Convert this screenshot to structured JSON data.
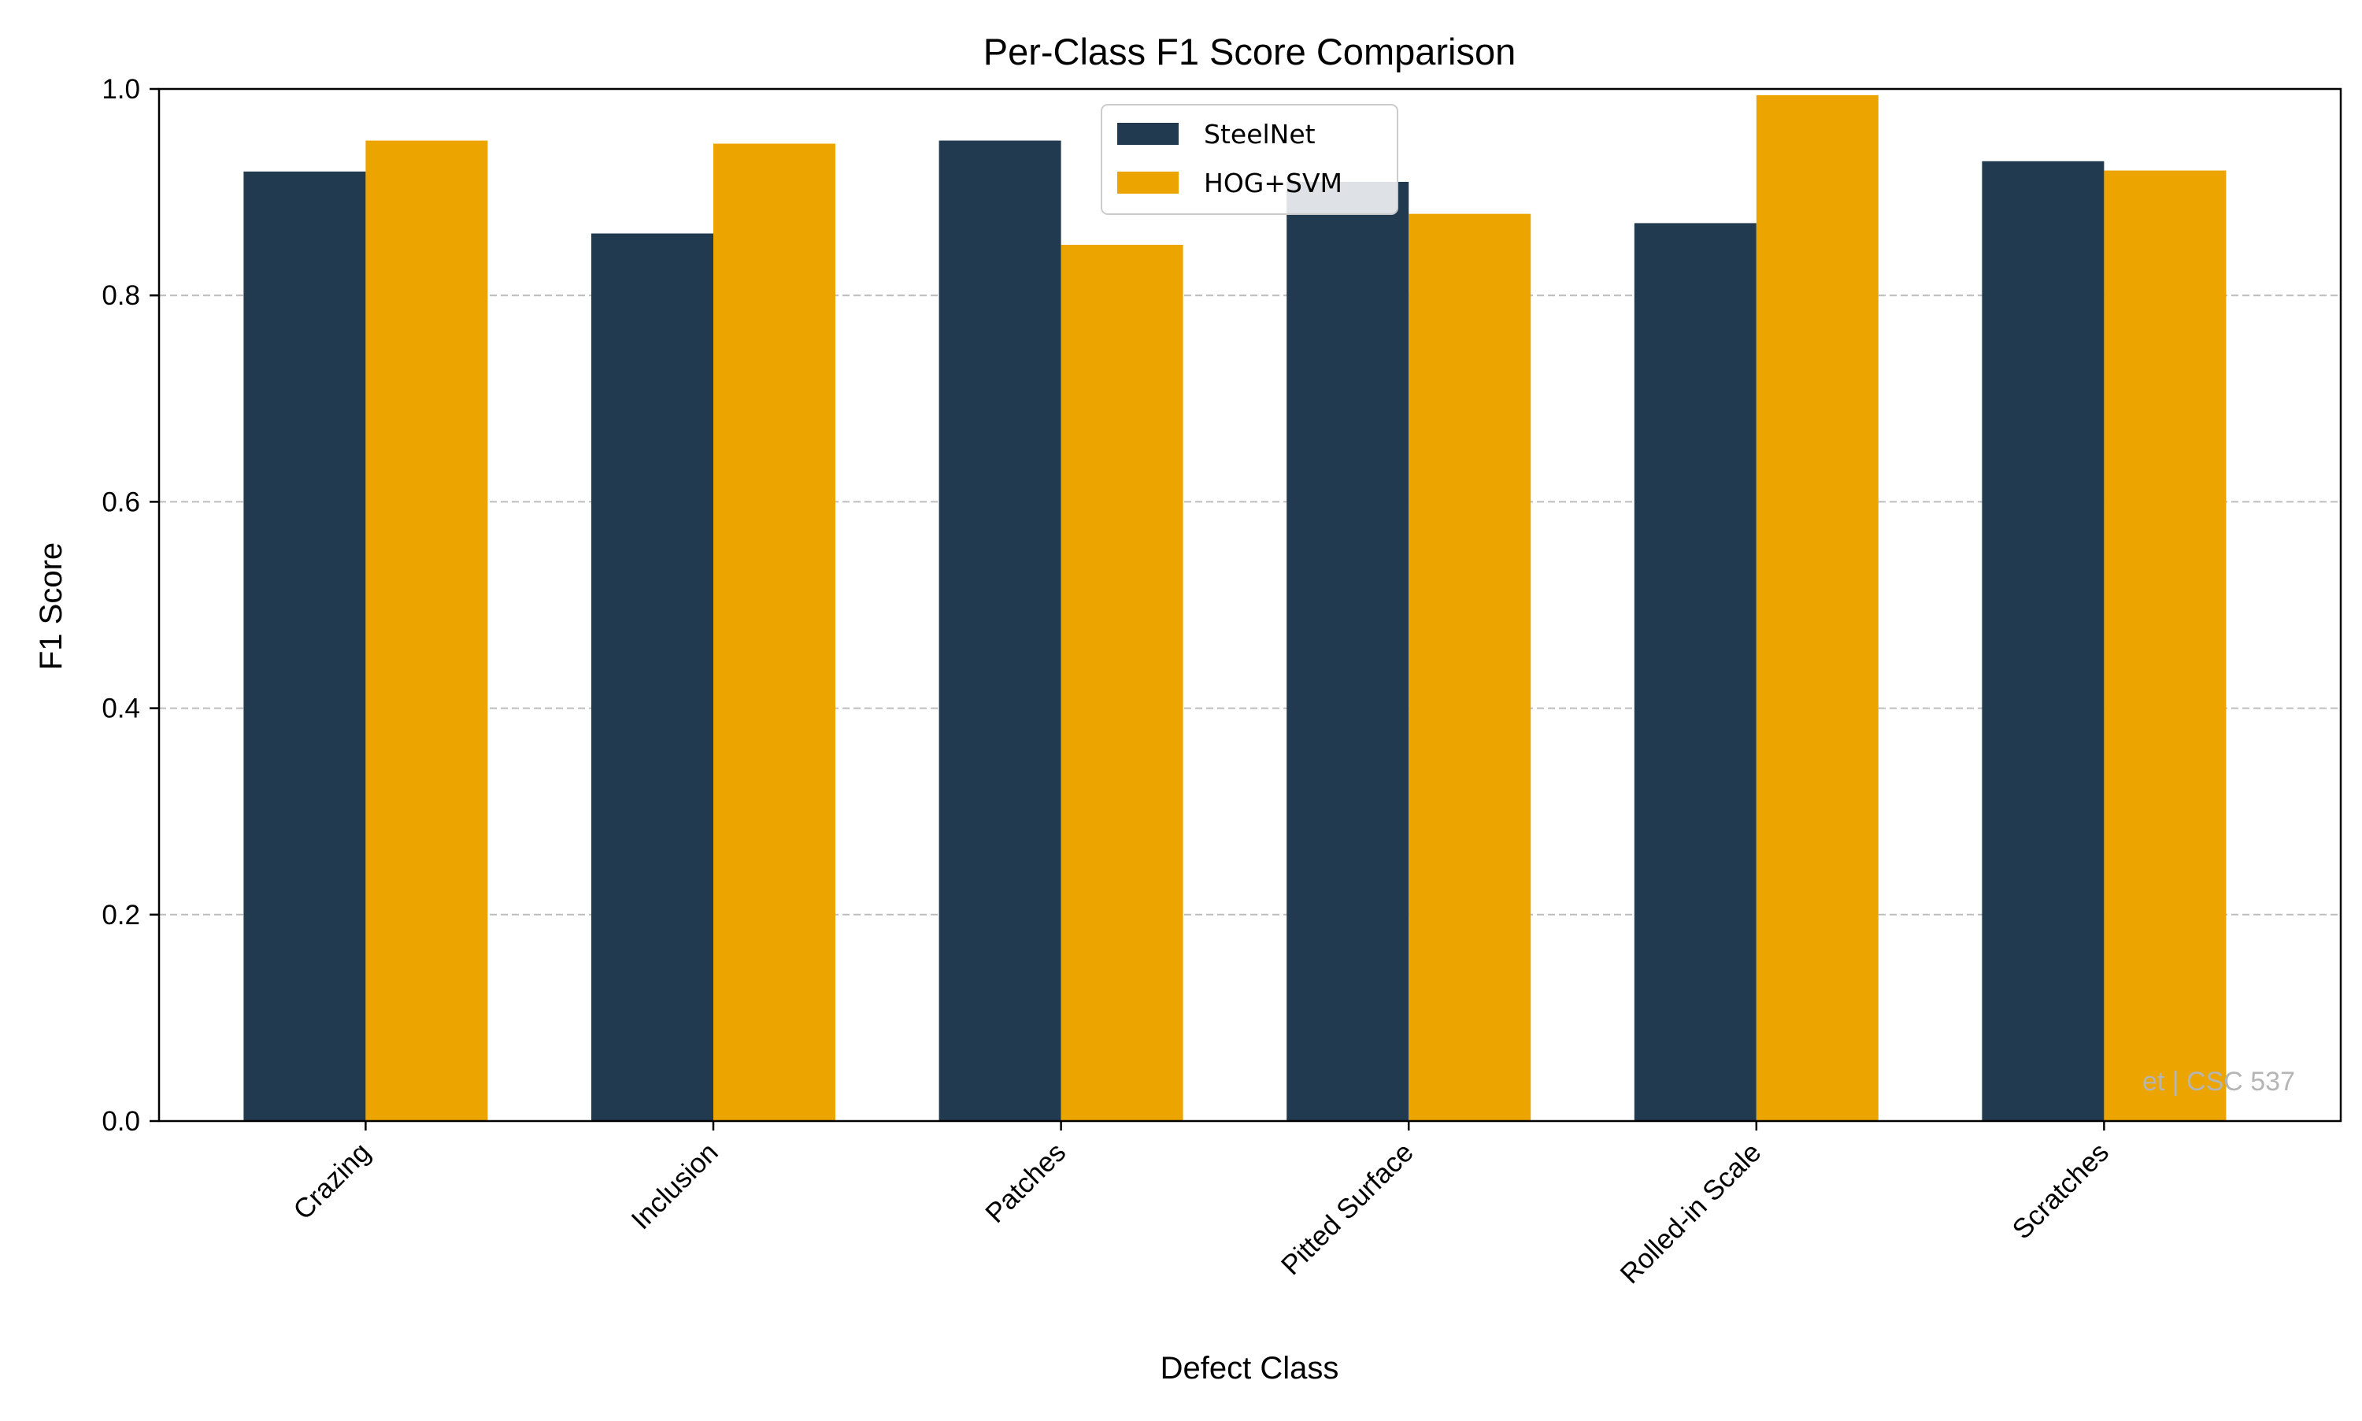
{
  "chart_data": {
    "type": "bar",
    "title": "Per-Class F1 Score Comparison",
    "xlabel": "Defect Class",
    "ylabel": "F1 Score",
    "ylim": [
      0,
      1.0
    ],
    "yticks": [
      "0.0",
      "0.2",
      "0.4",
      "0.6",
      "0.8",
      "1.0"
    ],
    "categories": [
      "Crazing",
      "Inclusion",
      "Patches",
      "Pitted Surface",
      "Rolled-in Scale",
      "Scratches"
    ],
    "series": [
      {
        "name": "SteelNet",
        "color": "#223a4f",
        "values": [
          0.92,
          0.86,
          0.95,
          0.91,
          0.87,
          0.93
        ]
      },
      {
        "name": "HOG+SVM",
        "color": "#eca400",
        "values": [
          0.95,
          0.947,
          0.849,
          0.879,
          0.994,
          0.921
        ]
      }
    ],
    "grid": "y-dashed",
    "legend_position": "upper-center",
    "watermark": "et | CSC 537",
    "watermark_color": "#b5b5b5"
  }
}
